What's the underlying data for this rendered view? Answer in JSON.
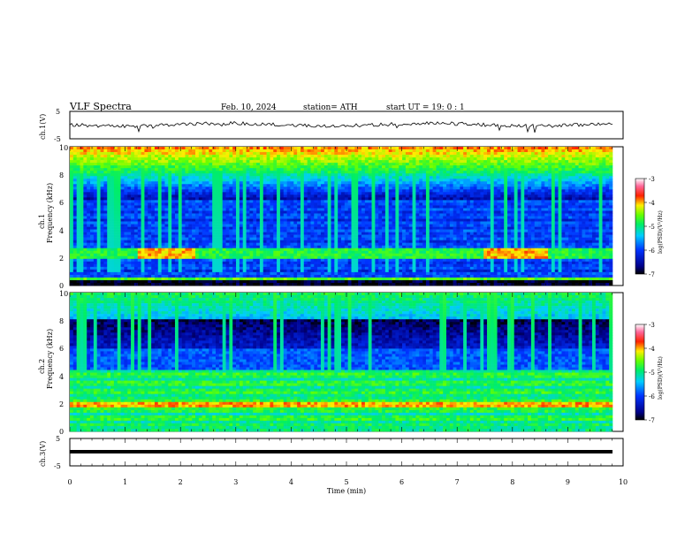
{
  "header": {
    "title": "VLF  Spectra",
    "date": "Feb. 10, 2024",
    "station": "station= ATH",
    "start": "start  UT  =    19: 0   : 1"
  },
  "chart_data": [
    {
      "type": "line",
      "ylabel": "ch.1(V)",
      "ylim": [
        -5,
        5
      ],
      "yticks": [
        "5",
        "-5"
      ]
    },
    {
      "type": "heatmap",
      "ylabel_top": "ch.1",
      "ylabel": "Frequency  (kHz)",
      "ylim": [
        0,
        10
      ],
      "yticks": [
        "0",
        "2",
        "4",
        "6",
        "8",
        "10"
      ],
      "colorbar": {
        "label": "log(PSD)(V²/Hz)",
        "range": [
          -7,
          -3
        ],
        "ticks": [
          "-3",
          "-4",
          "-5",
          "-6",
          "-7"
        ]
      }
    },
    {
      "type": "heatmap",
      "ylabel_top": "ch.2",
      "ylabel": "Frequency  (kHz)",
      "ylim": [
        0,
        10
      ],
      "yticks": [
        "0",
        "2",
        "4",
        "6",
        "8",
        "10"
      ],
      "colorbar": {
        "label": "log(PSD)(V²/Hz)",
        "range": [
          -7,
          -3
        ],
        "ticks": [
          "-3",
          "-4",
          "-5",
          "-6",
          "-7"
        ]
      }
    },
    {
      "type": "line",
      "ylabel": "ch.3(V)",
      "ylim": [
        -5,
        5
      ],
      "yticks": [
        "5",
        "-5"
      ],
      "xlabel": "Time  (min)",
      "xlim": [
        0,
        10
      ],
      "xticks": [
        "0",
        "1",
        "2",
        "3",
        "4",
        "5",
        "6",
        "7",
        "8",
        "9",
        "10"
      ]
    }
  ],
  "colors": {
    "axis": "#000000",
    "background": "#ffffff"
  }
}
